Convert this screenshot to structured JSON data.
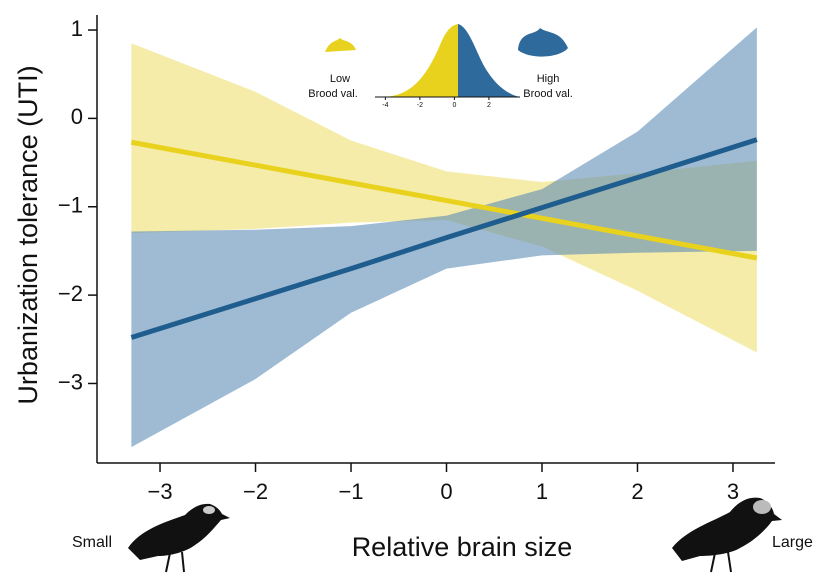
{
  "chart_data": {
    "type": "band-line",
    "xlabel": "Relative brain size",
    "ylabel": "Urbanization tolerance (UTI)",
    "left_note": "Small",
    "right_note": "Large",
    "legend_note": "Brood val.",
    "xlim": [
      -3.66,
      3.44
    ],
    "ylim": [
      -3.9,
      1.17
    ],
    "xticks": [
      {
        "value": -3,
        "label": "−3"
      },
      {
        "value": -2,
        "label": "−2"
      },
      {
        "value": -1,
        "label": "−1"
      },
      0,
      1,
      2,
      3
    ],
    "yticks": [
      1,
      0,
      {
        "value": -1,
        "label": "−1"
      },
      {
        "value": -2,
        "label": "−2"
      },
      {
        "value": -3,
        "label": "−3"
      }
    ],
    "x": [
      -3.3,
      -2,
      -1,
      0,
      1,
      2,
      3.25
    ],
    "series": [
      {
        "name": "Low",
        "color": "#e8d21d",
        "band_color": "#efe070",
        "values": [
          -0.27,
          -0.53,
          -0.73,
          -0.93,
          -1.13,
          -1.33,
          -1.58
        ],
        "upper": [
          0.85,
          0.3,
          -0.25,
          -0.6,
          -0.72,
          -0.62,
          -0.48
        ],
        "lower": [
          -1.3,
          -1.25,
          -1.18,
          -1.15,
          -1.45,
          -1.95,
          -2.65
        ]
      },
      {
        "name": "High",
        "color": "#1f5d8e",
        "band_color": "#5f8db5",
        "values": [
          -2.48,
          -2.04,
          -1.7,
          -1.35,
          -1.01,
          -0.67,
          -0.24
        ],
        "upper": [
          -1.28,
          -1.26,
          -1.22,
          -1.1,
          -0.8,
          -0.15,
          1.03
        ],
        "lower": [
          -3.72,
          -2.95,
          -2.2,
          -1.7,
          -1.55,
          -1.52,
          -1.5
        ]
      }
    ],
    "inset": {
      "xlim": [
        -4.6,
        3.8
      ],
      "xticks": [
        -4,
        -2,
        0,
        2
      ]
    }
  }
}
